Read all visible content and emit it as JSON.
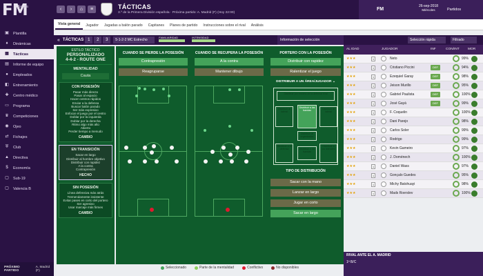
{
  "app": {
    "logo": "FM",
    "club_top": "Sevilla",
    "club_sub": "Primera División"
  },
  "header": {
    "title": "TÁCTICAS",
    "subtitle": "3.º de la Primera División española · Próxima partido: A. Madrid (F) (Hoy 22:00)",
    "fm_label": "FM",
    "date": "26-sep-2018",
    "date_sub": "Miércoles",
    "partidos": "Partidos"
  },
  "sidebar": {
    "items": [
      {
        "label": "Plantilla",
        "icon": "shirt-icon"
      },
      {
        "label": "Dinámicas",
        "icon": "dynamics-icon"
      },
      {
        "label": "Tácticas",
        "icon": "tactics-icon"
      },
      {
        "label": "Informe de equipo",
        "icon": "report-icon"
      },
      {
        "label": "Empleados",
        "icon": "staff-icon"
      },
      {
        "label": "Entrenamiento",
        "icon": "training-icon"
      },
      {
        "label": "Centro médico",
        "icon": "medical-icon"
      },
      {
        "label": "Programa",
        "icon": "calendar-icon"
      },
      {
        "label": "Competiciones",
        "icon": "trophy-icon"
      },
      {
        "label": "Ojeo",
        "icon": "scout-icon"
      },
      {
        "label": "Fichajes",
        "icon": "transfer-icon"
      },
      {
        "label": "Club",
        "icon": "club-icon"
      },
      {
        "label": "Directiva",
        "icon": "board-icon"
      },
      {
        "label": "Economía",
        "icon": "finance-icon"
      },
      {
        "label": "Sub-19",
        "icon": "u19-icon"
      },
      {
        "label": "Valencia B",
        "icon": "b-team-icon"
      }
    ],
    "next_match_label": "PRÓXIMO PARTIDO",
    "next_match_opp": "A. Madrid (F)"
  },
  "tabs": [
    "Vista general",
    "Jugador",
    "Jugadas a balón parado",
    "Capitanes",
    "Planes de partido",
    "Instrucciones sobre el rival",
    "Análisis"
  ],
  "tactics_bar": {
    "label": "TÁCTICAS",
    "slots": [
      "1",
      "2",
      "3"
    ],
    "formation": "5-1-2-2 MC Estrecho",
    "familiaridad_label": "FAMILIARIDAD",
    "intensidad_label": "INTENSIDAD",
    "familiaridad": 0.9,
    "intensidad": 0.8
  },
  "info_selection": {
    "label": "Información de selección"
  },
  "selectors": {
    "primary": "Selección rápida",
    "secondary": "Filtrado"
  },
  "player_list_header": {
    "col1": "AL IDAD",
    "col2": "JUGADOR",
    "col3": "INF",
    "col4": "CON/INT",
    "col5": "MOR"
  },
  "players": [
    {
      "name": "Neto",
      "tag": "",
      "pct": "99%"
    },
    {
      "name": "Cristiano Piccini",
      "tag": "DEF",
      "pct": "94%"
    },
    {
      "name": "Ezequiel Garay",
      "tag": "DEF",
      "pct": "98%"
    },
    {
      "name": "Jeison Murillo",
      "tag": "DEF",
      "pct": "95%"
    },
    {
      "name": "Gabriel Paulista",
      "tag": "DEF",
      "pct": "100%"
    },
    {
      "name": "José Gayá",
      "tag": "DEF",
      "pct": "99%"
    },
    {
      "name": "F. Coquelin",
      "tag": "",
      "pct": "100%"
    },
    {
      "name": "Dani Parejo",
      "tag": "",
      "pct": "98%"
    },
    {
      "name": "Carlos Soler",
      "tag": "",
      "pct": "99%"
    },
    {
      "name": "Rodrigo",
      "tag": "",
      "pct": "99%"
    },
    {
      "name": "Kevin Gameiro",
      "tag": "",
      "pct": "97%"
    },
    {
      "name": "J. Doménech",
      "tag": "",
      "pct": "100%"
    },
    {
      "name": "Daniel Wass",
      "tag": "",
      "pct": "97%"
    },
    {
      "name": "Gonçalo Guedes",
      "tag": "",
      "pct": "95%"
    },
    {
      "name": "Michy Batshuayi",
      "tag": "",
      "pct": "98%"
    },
    {
      "name": "Mads Roerslev",
      "tag": "",
      "pct": "100%"
    }
  ],
  "bottom_right": {
    "title": "RIVAL ANTE EL A. MADRID",
    "sub": "1ª B/C"
  },
  "left_panel": {
    "estilo_label": "ESTILO TÁCTICO",
    "estilo_name": "PERSONALIZADO",
    "estilo_formation": "4-4-2 - ROUTE ONE",
    "mentalidad_label": "MENTALIDAD",
    "mentalidad_value": "Cauta",
    "con_posesion": {
      "label": "CON POSESIÓN",
      "items": [
        "Pasar más directo",
        "Pasar al espacio",
        "Hacer centros rápidos",
        "Enviar a la defensa",
        "Buscar balón parado",
        "Ser más expresivo",
        "Enfocar el juego por el centro",
        "Doblar por la izquierda",
        "Doblar por la derecha",
        "Ritmo algo más alto",
        "Abierto",
        "Perder tiempo a menudo"
      ],
      "button": "CAMBIO"
    },
    "en_transicion": {
      "label": "EN TRANSICIÓN",
      "items": [
        "Sacar en largo",
        "Distribuir al hombre objetivo",
        "Distribuir con rapidez",
        "A la contra",
        "Contrapresión"
      ],
      "button": "HECHO"
    },
    "sin_posesion": {
      "label": "SIN POSESIÓN",
      "items": [
        "Línea defensiva más atrás",
        "Tremendamente insistente",
        "Evitar pases en corto del portero",
        "Ser agresivo",
        "Usar marcaje más firmes"
      ],
      "button": "CAMBIO"
    }
  },
  "columns": [
    {
      "title": "CUANDO SE PIERDE LA POSESIÓN",
      "buttons": [
        "Contrapresión",
        "Reagruparse"
      ]
    },
    {
      "title": "CUANDO SE RECUPERA LA POSESIÓN",
      "buttons": [
        "A la contra",
        "Mantener dibujo"
      ]
    },
    {
      "title": "PORTERO CON LA POSESIÓN",
      "buttons": [
        "Distribuir con rapidez",
        "Ralentizar el juego"
      ]
    }
  ],
  "distribution": {
    "area_label": "DISTRIBUIR A UN ÁREA/JUGADOR",
    "zones": [
      "Distribuir por encima de la defensa rival",
      "Distribuir al lateral",
      "Distribuir a las bandas",
      "Distribuir al lateral",
      "Distribuir al organizador",
      "Distribuir a la defensa",
      "Distribuir a las bandas",
      "Distribuir a los laterales"
    ],
    "tipo_label": "TIPO DE DISTRIBUCIÓN",
    "tipo_buttons": [
      "Sacar con la mano",
      "Lanzar en largo",
      "Jugar en corto",
      "Sacar en largo"
    ]
  },
  "legend": [
    "Seleccionado",
    "Parte de la mentalidad",
    "Conflictivo",
    "No disponibles"
  ],
  "colors": {
    "purple": "#2a1244",
    "green": "#0f5c2c",
    "accent": "#44a35a"
  }
}
